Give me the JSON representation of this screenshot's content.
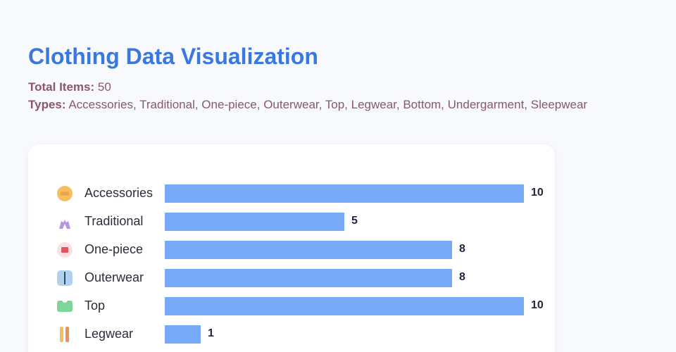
{
  "page": {
    "title": "Clothing Data Visualization",
    "total_label": "Total Items:",
    "total_value": "50",
    "types_label": "Types:",
    "types_value": "Accessories, Traditional, One-piece, Outerwear, Top, Legwear, Bottom, Undergarment, Sleepwear"
  },
  "chart_data": {
    "type": "bar",
    "orientation": "horizontal",
    "categories": [
      "Accessories",
      "Traditional",
      "One-piece",
      "Outerwear",
      "Top",
      "Legwear"
    ],
    "values": [
      10,
      5,
      8,
      8,
      10,
      1
    ],
    "icons": [
      "accessories-icon",
      "traditional-icon",
      "one-piece-icon",
      "outerwear-icon",
      "top-icon",
      "legwear-icon"
    ],
    "xlim": [
      0,
      10
    ],
    "bar_color": "#78a9f8",
    "title": "",
    "xlabel": "",
    "ylabel": ""
  }
}
